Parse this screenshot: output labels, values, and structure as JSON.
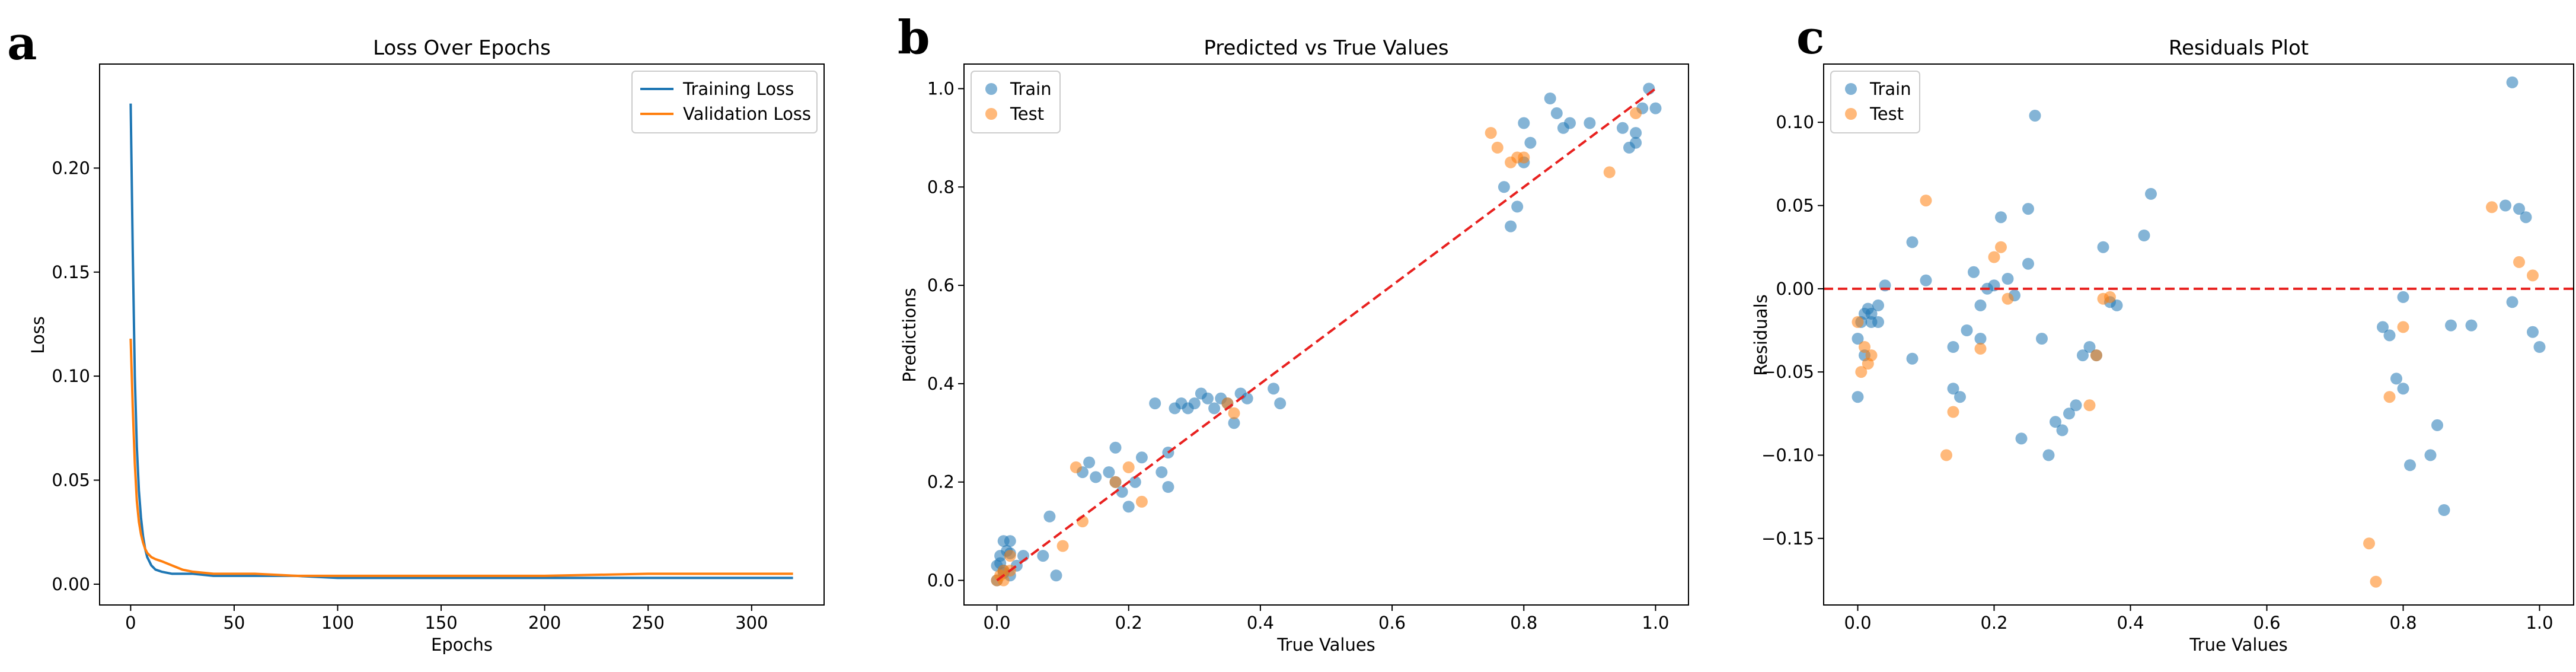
{
  "colors": {
    "train": "#1f77b4",
    "test": "#ff7f0e",
    "ref": "#e8211f"
  },
  "panels": [
    {
      "letter": "a"
    },
    {
      "letter": "b"
    },
    {
      "letter": "c"
    }
  ],
  "chart_data": [
    {
      "type": "line",
      "title": "Loss Over Epochs",
      "xlabel": "Epochs",
      "ylabel": "Loss",
      "xlim": [
        -15,
        335
      ],
      "ylim": [
        -0.01,
        0.25
      ],
      "xticks": [
        0,
        50,
        100,
        150,
        200,
        250,
        300
      ],
      "yticks": [
        0.0,
        0.05,
        0.1,
        0.15,
        0.2
      ],
      "legend": "top-right",
      "series": [
        {
          "name": "Training Loss",
          "color": "#1f77b4",
          "x": [
            0,
            1,
            2,
            3,
            4,
            5,
            6,
            7,
            8,
            10,
            12,
            15,
            20,
            25,
            30,
            40,
            50,
            60,
            80,
            100,
            150,
            200,
            250,
            300,
            320
          ],
          "y": [
            0.231,
            0.16,
            0.1,
            0.066,
            0.045,
            0.032,
            0.023,
            0.017,
            0.013,
            0.009,
            0.007,
            0.006,
            0.005,
            0.005,
            0.005,
            0.004,
            0.004,
            0.004,
            0.004,
            0.003,
            0.003,
            0.003,
            0.003,
            0.003,
            0.003
          ]
        },
        {
          "name": "Validation Loss",
          "color": "#ff7f0e",
          "x": [
            0,
            1,
            2,
            3,
            4,
            5,
            6,
            7,
            8,
            10,
            12,
            15,
            20,
            25,
            30,
            40,
            50,
            60,
            80,
            100,
            150,
            200,
            250,
            300,
            320
          ],
          "y": [
            0.118,
            0.085,
            0.058,
            0.04,
            0.03,
            0.024,
            0.02,
            0.017,
            0.015,
            0.013,
            0.012,
            0.011,
            0.009,
            0.007,
            0.006,
            0.005,
            0.005,
            0.005,
            0.004,
            0.004,
            0.004,
            0.004,
            0.005,
            0.005,
            0.005
          ]
        }
      ]
    },
    {
      "type": "scatter",
      "title": "Predicted vs True Values",
      "xlabel": "True Values",
      "ylabel": "Predictions",
      "xlim": [
        -0.05,
        1.05
      ],
      "ylim": [
        -0.05,
        1.05
      ],
      "xticks": [
        0.0,
        0.2,
        0.4,
        0.6,
        0.8,
        1.0
      ],
      "yticks": [
        0.0,
        0.2,
        0.4,
        0.6,
        0.8,
        1.0
      ],
      "reference_line": {
        "x": [
          0,
          1
        ],
        "y": [
          0,
          1
        ],
        "style": "dashed"
      },
      "legend": "top-left",
      "series": [
        {
          "name": "Train",
          "color": "#1f77b4",
          "x": [
            0.0,
            0.0,
            0.005,
            0.01,
            0.01,
            0.015,
            0.02,
            0.02,
            0.03,
            0.005,
            0.01,
            0.02,
            0.04,
            0.07,
            0.08,
            0.09,
            0.13,
            0.14,
            0.15,
            0.17,
            0.18,
            0.18,
            0.19,
            0.2,
            0.21,
            0.22,
            0.24,
            0.25,
            0.26,
            0.26,
            0.27,
            0.28,
            0.29,
            0.3,
            0.31,
            0.32,
            0.33,
            0.34,
            0.35,
            0.36,
            0.37,
            0.38,
            0.42,
            0.43,
            0.77,
            0.78,
            0.79,
            0.8,
            0.8,
            0.81,
            0.84,
            0.85,
            0.86,
            0.87,
            0.9,
            0.95,
            0.96,
            0.97,
            0.98,
            0.99,
            1.0,
            0.97
          ],
          "y": [
            0.03,
            0.0,
            0.05,
            0.08,
            0.02,
            0.06,
            0.08,
            0.01,
            0.03,
            0.035,
            0.015,
            0.055,
            0.05,
            0.05,
            0.13,
            0.01,
            0.22,
            0.24,
            0.21,
            0.22,
            0.27,
            0.2,
            0.18,
            0.15,
            0.2,
            0.25,
            0.36,
            0.22,
            0.26,
            0.19,
            0.35,
            0.36,
            0.35,
            0.36,
            0.38,
            0.37,
            0.35,
            0.37,
            0.36,
            0.32,
            0.38,
            0.37,
            0.39,
            0.36,
            0.8,
            0.72,
            0.76,
            0.85,
            0.93,
            0.89,
            0.98,
            0.95,
            0.92,
            0.93,
            0.93,
            0.92,
            0.88,
            0.89,
            0.96,
            1.0,
            0.96,
            0.91
          ]
        },
        {
          "name": "Test",
          "color": "#ff7f0e",
          "x": [
            0.0,
            0.005,
            0.01,
            0.01,
            0.02,
            0.02,
            0.1,
            0.12,
            0.13,
            0.18,
            0.2,
            0.22,
            0.35,
            0.36,
            0.75,
            0.76,
            0.78,
            0.79,
            0.8,
            0.93,
            0.97
          ],
          "y": [
            0.0,
            0.01,
            0.02,
            0.0,
            0.05,
            0.02,
            0.07,
            0.23,
            0.12,
            0.2,
            0.23,
            0.16,
            0.36,
            0.34,
            0.91,
            0.88,
            0.85,
            0.86,
            0.86,
            0.83,
            0.95
          ]
        }
      ]
    },
    {
      "type": "scatter",
      "title": "Residuals Plot",
      "xlabel": "True Values",
      "ylabel": "Residuals",
      "xlim": [
        -0.05,
        1.05
      ],
      "ylim": [
        -0.19,
        0.135
      ],
      "xticks": [
        0.0,
        0.2,
        0.4,
        0.6,
        0.8,
        1.0
      ],
      "yticks": [
        -0.15,
        -0.1,
        -0.05,
        0.0,
        0.05,
        0.1
      ],
      "reference_line": {
        "y": 0.0,
        "style": "dashed"
      },
      "legend": "top-left",
      "series": [
        {
          "name": "Train",
          "color": "#1f77b4",
          "x": [
            0.0,
            0.0,
            0.005,
            0.01,
            0.01,
            0.015,
            0.02,
            0.02,
            0.03,
            0.03,
            0.04,
            0.08,
            0.08,
            0.1,
            0.14,
            0.14,
            0.15,
            0.16,
            0.17,
            0.18,
            0.18,
            0.19,
            0.2,
            0.21,
            0.22,
            0.23,
            0.24,
            0.25,
            0.25,
            0.26,
            0.27,
            0.28,
            0.29,
            0.3,
            0.31,
            0.32,
            0.33,
            0.34,
            0.35,
            0.36,
            0.37,
            0.38,
            0.42,
            0.43,
            0.77,
            0.78,
            0.79,
            0.8,
            0.8,
            0.81,
            0.84,
            0.85,
            0.86,
            0.87,
            0.9,
            0.95,
            0.96,
            0.97,
            0.98,
            0.99,
            1.0,
            0.96
          ],
          "y": [
            -0.065,
            -0.03,
            -0.02,
            -0.015,
            -0.04,
            -0.012,
            -0.02,
            -0.015,
            -0.01,
            -0.02,
            0.002,
            0.028,
            -0.042,
            0.005,
            -0.035,
            -0.06,
            -0.065,
            -0.025,
            0.01,
            -0.03,
            -0.01,
            0.0,
            0.002,
            0.043,
            0.006,
            -0.004,
            -0.09,
            0.048,
            0.015,
            0.104,
            -0.03,
            -0.1,
            -0.08,
            -0.085,
            -0.075,
            -0.07,
            -0.04,
            -0.035,
            -0.04,
            0.025,
            -0.008,
            -0.01,
            0.032,
            0.057,
            -0.023,
            -0.028,
            -0.054,
            -0.06,
            -0.005,
            -0.106,
            -0.1,
            -0.082,
            -0.133,
            -0.022,
            -0.022,
            0.05,
            0.124,
            0.048,
            0.043,
            -0.026,
            -0.035,
            -0.008
          ],
          "highlight_note": ""
        },
        {
          "name": "Test",
          "color": "#ff7f0e",
          "x": [
            0.0,
            0.005,
            0.01,
            0.015,
            0.02,
            0.1,
            0.13,
            0.14,
            0.18,
            0.2,
            0.21,
            0.22,
            0.34,
            0.35,
            0.36,
            0.37,
            0.75,
            0.76,
            0.78,
            0.8,
            0.93,
            0.97,
            0.99
          ],
          "y": [
            -0.02,
            -0.05,
            -0.035,
            -0.045,
            -0.04,
            0.053,
            -0.1,
            -0.074,
            -0.036,
            0.019,
            0.025,
            -0.006,
            -0.07,
            -0.04,
            -0.006,
            -0.005,
            -0.153,
            -0.176,
            -0.065,
            -0.023,
            0.049,
            0.016,
            0.008
          ]
        }
      ]
    }
  ]
}
